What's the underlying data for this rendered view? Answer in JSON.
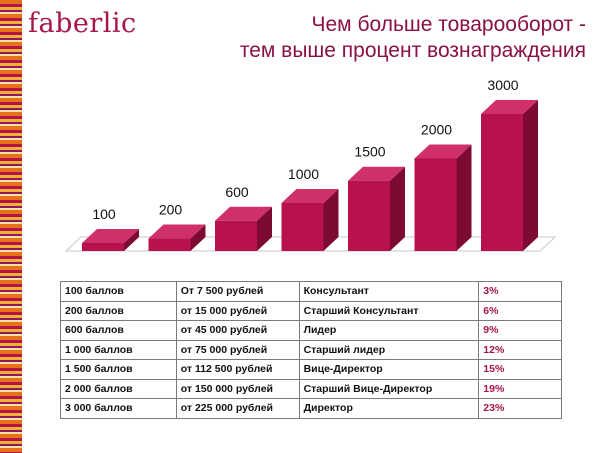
{
  "brand": {
    "logo_text": "faberlic"
  },
  "title": {
    "line1": "Чем больше товарооборот -",
    "line2": "тем выше процент вознаграждения"
  },
  "colors": {
    "bar_front": "#b8124e",
    "bar_side": "#7d0a33",
    "bar_top": "#d0306a",
    "title": "#8a1046",
    "accent": "#a8144c"
  },
  "chart_data": {
    "type": "bar",
    "title": "",
    "xlabel": "",
    "ylabel": "",
    "categories": [
      "",
      "",
      "",
      "",
      "",
      "",
      ""
    ],
    "values": [
      100,
      200,
      600,
      1000,
      1500,
      2000,
      3000
    ],
    "data_labels": [
      "100",
      "200",
      "600",
      "1000",
      "1500",
      "2000",
      "3000"
    ],
    "grid": false,
    "legend": "none",
    "style": "3d"
  },
  "table": {
    "rows": [
      [
        "100 баллов",
        "От 7 500 рублей",
        "Консультант",
        "3%"
      ],
      [
        "200 баллов",
        "от 15 000 рублей",
        "Старший Консультант",
        "6%"
      ],
      [
        "600 баллов",
        "от 45 000 рублей",
        "Лидер",
        "9%"
      ],
      [
        "1 000 баллов",
        "от 75 000 рублей",
        "Старший лидер",
        "12%"
      ],
      [
        "1 500 баллов",
        "от 112 500 рублей",
        "Вице-Директор",
        "15%"
      ],
      [
        "2 000 баллов",
        "от 150 000 рублей",
        "Старший Вице-Директор",
        "19%"
      ],
      [
        "3 000 баллов",
        "от 225 000 рублей",
        "Директор",
        "23%"
      ]
    ]
  }
}
